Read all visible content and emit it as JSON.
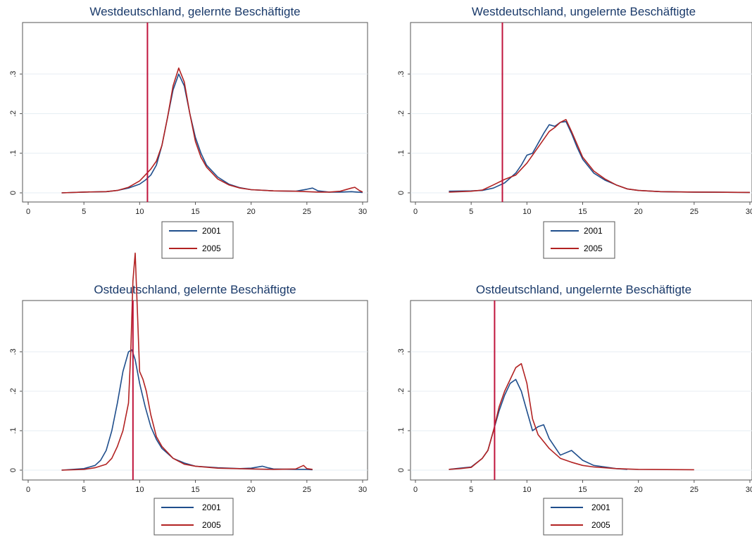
{
  "chart_data": [
    {
      "type": "line",
      "title": "Westdeutschland, gelernte Beschäftigte",
      "xticks": [
        "0",
        "5",
        "10",
        "15",
        "20",
        "25",
        "30"
      ],
      "yticks": [
        "0",
        ".1",
        ".2",
        ".3"
      ],
      "xlim": [
        0,
        30
      ],
      "ylim": [
        0,
        0.43
      ],
      "vline": 10.7,
      "legend": [
        "2001",
        "2005"
      ],
      "series": [
        {
          "name": "2001",
          "color": "#1f4e8c",
          "x": [
            3,
            5,
            7,
            8,
            9,
            10,
            10.5,
            11,
            11.5,
            12,
            12.5,
            13,
            13.5,
            14,
            14.5,
            15,
            15.5,
            16,
            17,
            18,
            19,
            20,
            22,
            24,
            25,
            25.5,
            26,
            27,
            28,
            29,
            29.5,
            30
          ],
          "y": [
            0,
            0.002,
            0.003,
            0.006,
            0.012,
            0.022,
            0.032,
            0.045,
            0.07,
            0.12,
            0.19,
            0.26,
            0.3,
            0.27,
            0.2,
            0.14,
            0.1,
            0.07,
            0.04,
            0.022,
            0.013,
            0.008,
            0.005,
            0.004,
            0.009,
            0.012,
            0.005,
            0.002,
            0.002,
            0.003,
            0.002,
            0.001
          ]
        },
        {
          "name": "2005",
          "color": "#b22222",
          "x": [
            3,
            5,
            7,
            8,
            9,
            10,
            10.5,
            11,
            11.5,
            12,
            12.5,
            13,
            13.5,
            14,
            14.5,
            15,
            15.5,
            16,
            17,
            18,
            19,
            20,
            22,
            24,
            25,
            26,
            27,
            28,
            29,
            29.3,
            29.7,
            30
          ],
          "y": [
            0,
            0.002,
            0.003,
            0.006,
            0.014,
            0.03,
            0.045,
            0.06,
            0.08,
            0.12,
            0.19,
            0.27,
            0.315,
            0.28,
            0.2,
            0.13,
            0.09,
            0.065,
            0.035,
            0.02,
            0.012,
            0.008,
            0.005,
            0.004,
            0.003,
            0.002,
            0.002,
            0.004,
            0.012,
            0.014,
            0.006,
            0.002
          ]
        }
      ]
    },
    {
      "type": "line",
      "title": "Westdeutschland, ungelernte Beschäftigte",
      "xticks": [
        "0",
        "5",
        "10",
        "15",
        "20",
        "25",
        "30"
      ],
      "yticks": [
        "0",
        ".1",
        ".2",
        ".3"
      ],
      "xlim": [
        0,
        30
      ],
      "ylim": [
        0,
        0.43
      ],
      "vline": 7.8,
      "legend": [
        "2001",
        "2005"
      ],
      "series": [
        {
          "name": "2001",
          "color": "#1f4e8c",
          "x": [
            3,
            5,
            6,
            7,
            8,
            9,
            9.5,
            10,
            10.5,
            11,
            11.5,
            12,
            12.5,
            13,
            13.5,
            14,
            14.5,
            15,
            16,
            17,
            18,
            19,
            20,
            22,
            25,
            30
          ],
          "y": [
            0.004,
            0.005,
            0.006,
            0.012,
            0.025,
            0.05,
            0.07,
            0.095,
            0.1,
            0.125,
            0.15,
            0.172,
            0.168,
            0.178,
            0.18,
            0.15,
            0.115,
            0.085,
            0.05,
            0.032,
            0.02,
            0.01,
            0.006,
            0.003,
            0.002,
            0.001
          ]
        },
        {
          "name": "2005",
          "color": "#b22222",
          "x": [
            3,
            5,
            6,
            7,
            8,
            9,
            10,
            11,
            12,
            12.5,
            13,
            13.5,
            14,
            15,
            16,
            17,
            18,
            19,
            20,
            22,
            25,
            30
          ],
          "y": [
            0.002,
            0.004,
            0.007,
            0.02,
            0.034,
            0.045,
            0.075,
            0.115,
            0.155,
            0.165,
            0.178,
            0.185,
            0.155,
            0.09,
            0.055,
            0.035,
            0.02,
            0.01,
            0.006,
            0.003,
            0.002,
            0.001
          ]
        }
      ]
    },
    {
      "type": "line",
      "title": "Ostdeutschland, gelernte Beschäftigte",
      "xticks": [
        "0",
        "5",
        "10",
        "15",
        "20",
        "25",
        "30"
      ],
      "yticks": [
        "0",
        ".1",
        ".2",
        ".3"
      ],
      "xlim": [
        0,
        30
      ],
      "ylim": [
        0,
        0.43
      ],
      "vline": 9.4,
      "legend": [
        "2001",
        "2005"
      ],
      "series": [
        {
          "name": "2001",
          "color": "#1f4e8c",
          "x": [
            3,
            5,
            6,
            6.5,
            7,
            7.5,
            8,
            8.5,
            9,
            9.3,
            9.6,
            10,
            10.5,
            11,
            11.5,
            12,
            13,
            14,
            15,
            17,
            19,
            20,
            21,
            21.5,
            22,
            24,
            25,
            25.5
          ],
          "y": [
            0,
            0.004,
            0.012,
            0.025,
            0.05,
            0.1,
            0.17,
            0.25,
            0.3,
            0.305,
            0.28,
            0.22,
            0.16,
            0.11,
            0.078,
            0.055,
            0.03,
            0.018,
            0.01,
            0.006,
            0.004,
            0.005,
            0.01,
            0.006,
            0.003,
            0.002,
            0.002,
            0.001
          ]
        },
        {
          "name": "2005",
          "color": "#b22222",
          "x": [
            3,
            5,
            6,
            7,
            7.5,
            8,
            8.5,
            9,
            9.2,
            9.4,
            9.6,
            9.8,
            10,
            10.3,
            10.6,
            11,
            11.5,
            12,
            13,
            14,
            15,
            17,
            20,
            22,
            24,
            24.7,
            25,
            25.5
          ],
          "y": [
            0,
            0.002,
            0.006,
            0.015,
            0.03,
            0.06,
            0.1,
            0.17,
            0.3,
            0.48,
            0.55,
            0.4,
            0.25,
            0.23,
            0.2,
            0.14,
            0.085,
            0.06,
            0.03,
            0.015,
            0.01,
            0.005,
            0.003,
            0.002,
            0.003,
            0.012,
            0.004,
            0.002
          ]
        }
      ]
    },
    {
      "type": "line",
      "title": "Ostdeutschland, ungelernte Beschäftigte",
      "xticks": [
        "0",
        "5",
        "10",
        "15",
        "20",
        "25",
        "30"
      ],
      "yticks": [
        "0",
        ".1",
        ".2",
        ".3"
      ],
      "xlim": [
        0,
        30
      ],
      "ylim": [
        0,
        0.43
      ],
      "vline": 7.1,
      "legend": [
        "2001",
        "2005"
      ],
      "series": [
        {
          "name": "2001",
          "color": "#1f4e8c",
          "x": [
            3,
            4,
            5,
            6,
            6.5,
            7,
            7.5,
            8,
            8.5,
            9,
            9.5,
            10,
            10.5,
            11,
            11.5,
            12,
            13,
            14,
            15,
            16,
            17,
            18,
            19
          ],
          "y": [
            0.002,
            0.005,
            0.008,
            0.03,
            0.05,
            0.1,
            0.15,
            0.19,
            0.22,
            0.23,
            0.2,
            0.15,
            0.1,
            0.11,
            0.115,
            0.08,
            0.038,
            0.05,
            0.025,
            0.012,
            0.008,
            0.004,
            0.002
          ]
        },
        {
          "name": "2005",
          "color": "#b22222",
          "x": [
            3,
            4,
            5,
            6,
            6.5,
            7,
            7.5,
            8,
            8.5,
            9,
            9.5,
            10,
            10.5,
            11,
            12,
            13,
            14,
            15,
            16,
            18,
            20,
            25
          ],
          "y": [
            0.002,
            0.004,
            0.007,
            0.03,
            0.05,
            0.1,
            0.16,
            0.2,
            0.23,
            0.26,
            0.27,
            0.22,
            0.13,
            0.09,
            0.055,
            0.03,
            0.02,
            0.012,
            0.008,
            0.004,
            0.002,
            0.001
          ]
        }
      ]
    }
  ]
}
